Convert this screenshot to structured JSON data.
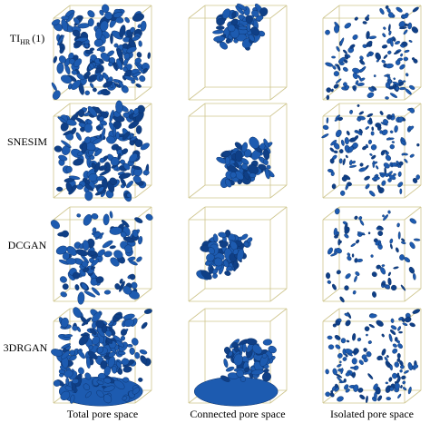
{
  "rows": [
    {
      "label": "TI",
      "subscript": "HR",
      "suffix": "(1)"
    },
    {
      "label": "SNESIM"
    },
    {
      "label": "DCGAN"
    },
    {
      "label": "3DRGAN"
    }
  ],
  "columns": [
    "Total pore space",
    "Connected pore space",
    "Isolated pore space"
  ]
}
